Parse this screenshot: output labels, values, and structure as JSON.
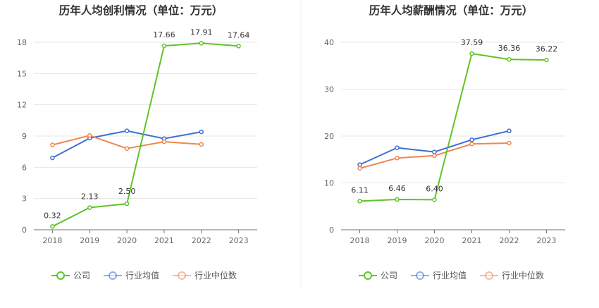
{
  "chart_data": [
    {
      "type": "line",
      "title": "历年人均创利情况（单位：万元）",
      "categories": [
        "2018",
        "2019",
        "2020",
        "2021",
        "2022",
        "2023"
      ],
      "ylim": [
        0,
        18
      ],
      "yticks": [
        "0",
        "3",
        "6",
        "9",
        "12",
        "15",
        "18"
      ],
      "grid": true,
      "legend": "bottom-center",
      "series": [
        {
          "name": "公司",
          "color": "#5ec427",
          "values": [
            0.32,
            2.13,
            2.5,
            17.66,
            17.91,
            17.64
          ],
          "labels": [
            "0.32",
            "2.13",
            "2.50",
            "17.66",
            "17.91",
            "17.64"
          ]
        },
        {
          "name": "行业均值",
          "color": "#3c6fd6",
          "values": [
            6.9,
            8.8,
            9.5,
            8.75,
            9.4,
            null
          ]
        },
        {
          "name": "行业中位数",
          "color": "#f08650",
          "values": [
            8.15,
            9.05,
            7.8,
            8.45,
            8.2,
            null
          ]
        }
      ]
    },
    {
      "type": "line",
      "title": "历年人均薪酬情况（单位：万元）",
      "categories": [
        "2018",
        "2019",
        "2020",
        "2021",
        "2022",
        "2023"
      ],
      "ylim": [
        0,
        40
      ],
      "yticks": [
        "0",
        "10",
        "20",
        "30",
        "40"
      ],
      "grid": true,
      "legend": "bottom-center",
      "series": [
        {
          "name": "公司",
          "color": "#5ec427",
          "values": [
            6.11,
            6.46,
            6.4,
            37.59,
            36.36,
            36.22
          ],
          "labels": [
            "6.11",
            "6.46",
            "6.40",
            "37.59",
            "36.36",
            "36.22"
          ]
        },
        {
          "name": "行业均值",
          "color": "#3c6fd6",
          "values": [
            13.9,
            17.5,
            16.6,
            19.2,
            21.1,
            null
          ]
        },
        {
          "name": "行业中位数",
          "color": "#f08650",
          "values": [
            13.1,
            15.3,
            15.8,
            18.3,
            18.5,
            null
          ]
        }
      ]
    }
  ]
}
